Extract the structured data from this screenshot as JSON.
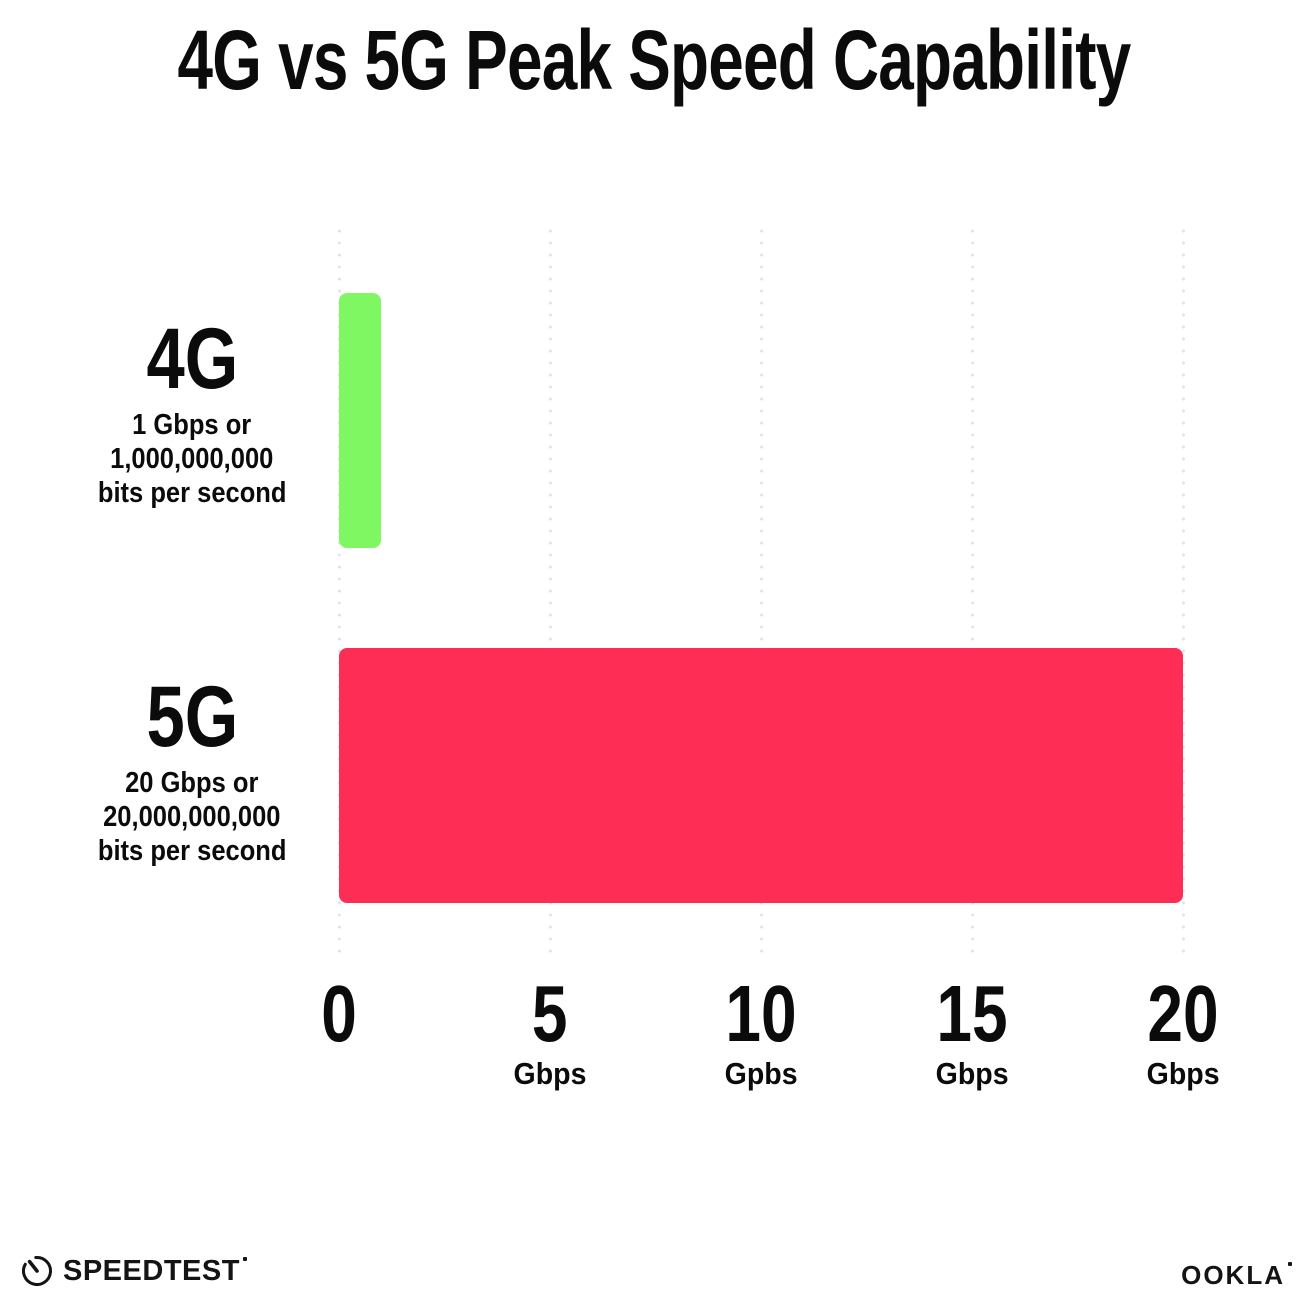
{
  "title": "4G vs 5G Peak Speed Capability",
  "chart_data": {
    "type": "bar",
    "orientation": "horizontal",
    "title": "4G vs 5G Peak Speed Capability",
    "categories": [
      "4G",
      "5G"
    ],
    "values": [
      1,
      20
    ],
    "xlim": [
      0,
      20
    ],
    "grid": "dotted-vertical",
    "gridline_color": "#dfe1ee",
    "rows": [
      {
        "label": "4G",
        "sublabel_lines": [
          "1 Gbps or",
          "1,000,000,000",
          "bits per second"
        ],
        "value": 1,
        "color": "#7ff763"
      },
      {
        "label": "5G",
        "sublabel_lines": [
          "20 Gbps or",
          "20,000,000,000",
          "bits per second"
        ],
        "value": 20,
        "color": "#fd2d55"
      }
    ],
    "x_ticks": [
      {
        "number": "0",
        "unit": ""
      },
      {
        "number": "5",
        "unit": "Gbps"
      },
      {
        "number": "10",
        "unit": "Gpbs"
      },
      {
        "number": "15",
        "unit": "Gbps"
      },
      {
        "number": "20",
        "unit": "Gbps"
      }
    ]
  },
  "footer": {
    "speedtest_label": "SPEEDTEST",
    "ookla_label": "OOKLA"
  }
}
